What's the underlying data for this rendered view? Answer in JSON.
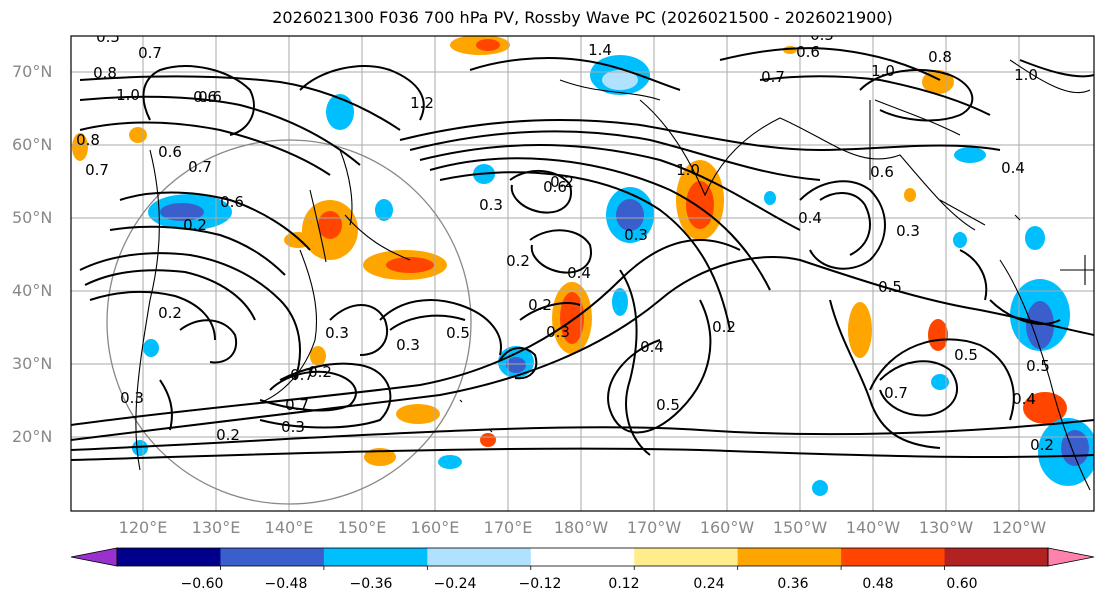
{
  "title": "2026021300 F036 700 hPa PV, Rossby Wave PC (2026021500 - 2026021900)",
  "latitude_labels": [
    "70°N",
    "60°N",
    "50°N",
    "40°N",
    "30°N",
    "20°N"
  ],
  "longitude_labels": [
    "120°E",
    "130°E",
    "140°E",
    "150°E",
    "160°E",
    "170°E",
    "180°W",
    "170°W",
    "160°W",
    "150°W",
    "140°W",
    "130°W",
    "120°W"
  ],
  "colorbar": {
    "ticks": [
      "−0.60",
      "−0.48",
      "−0.36",
      "−0.24",
      "−0.12",
      "0.12",
      "0.24",
      "0.36",
      "0.48",
      "0.60"
    ],
    "colors": [
      "#9932cc",
      "#00008b",
      "#3a5fcd",
      "#00bfff",
      "#b0e2ff",
      "#ffffff",
      "#ffec8b",
      "#ffa500",
      "#ff4500",
      "#b22222",
      "#ff82ab"
    ]
  },
  "contour_labels": [
    "0.5",
    "0.7",
    "0.8",
    "1.0",
    "0.6",
    "0.6",
    "0.7",
    "0.7",
    "0.6",
    "0.8",
    "0.2",
    "0.2",
    "0.3",
    "0.3",
    "0.2",
    "0.7",
    "0.3",
    "0.2",
    "0.3",
    "0.5",
    "0.2",
    "0.3",
    "0.2",
    "0.4",
    "0.2",
    "0.4",
    "0.5",
    "0.2",
    "1.4",
    "0.7",
    "1.0",
    "0.8",
    "0.6",
    "0.5",
    "1.0",
    "0.4",
    "0.6",
    "0.3",
    "0.4",
    "0.5",
    "0.5",
    "0.7",
    "0.4",
    "0.2",
    "1.0",
    "1.2",
    "0.6",
    "0.3",
    "0.5",
    "0.3",
    "0.6",
    "0.7"
  ]
}
